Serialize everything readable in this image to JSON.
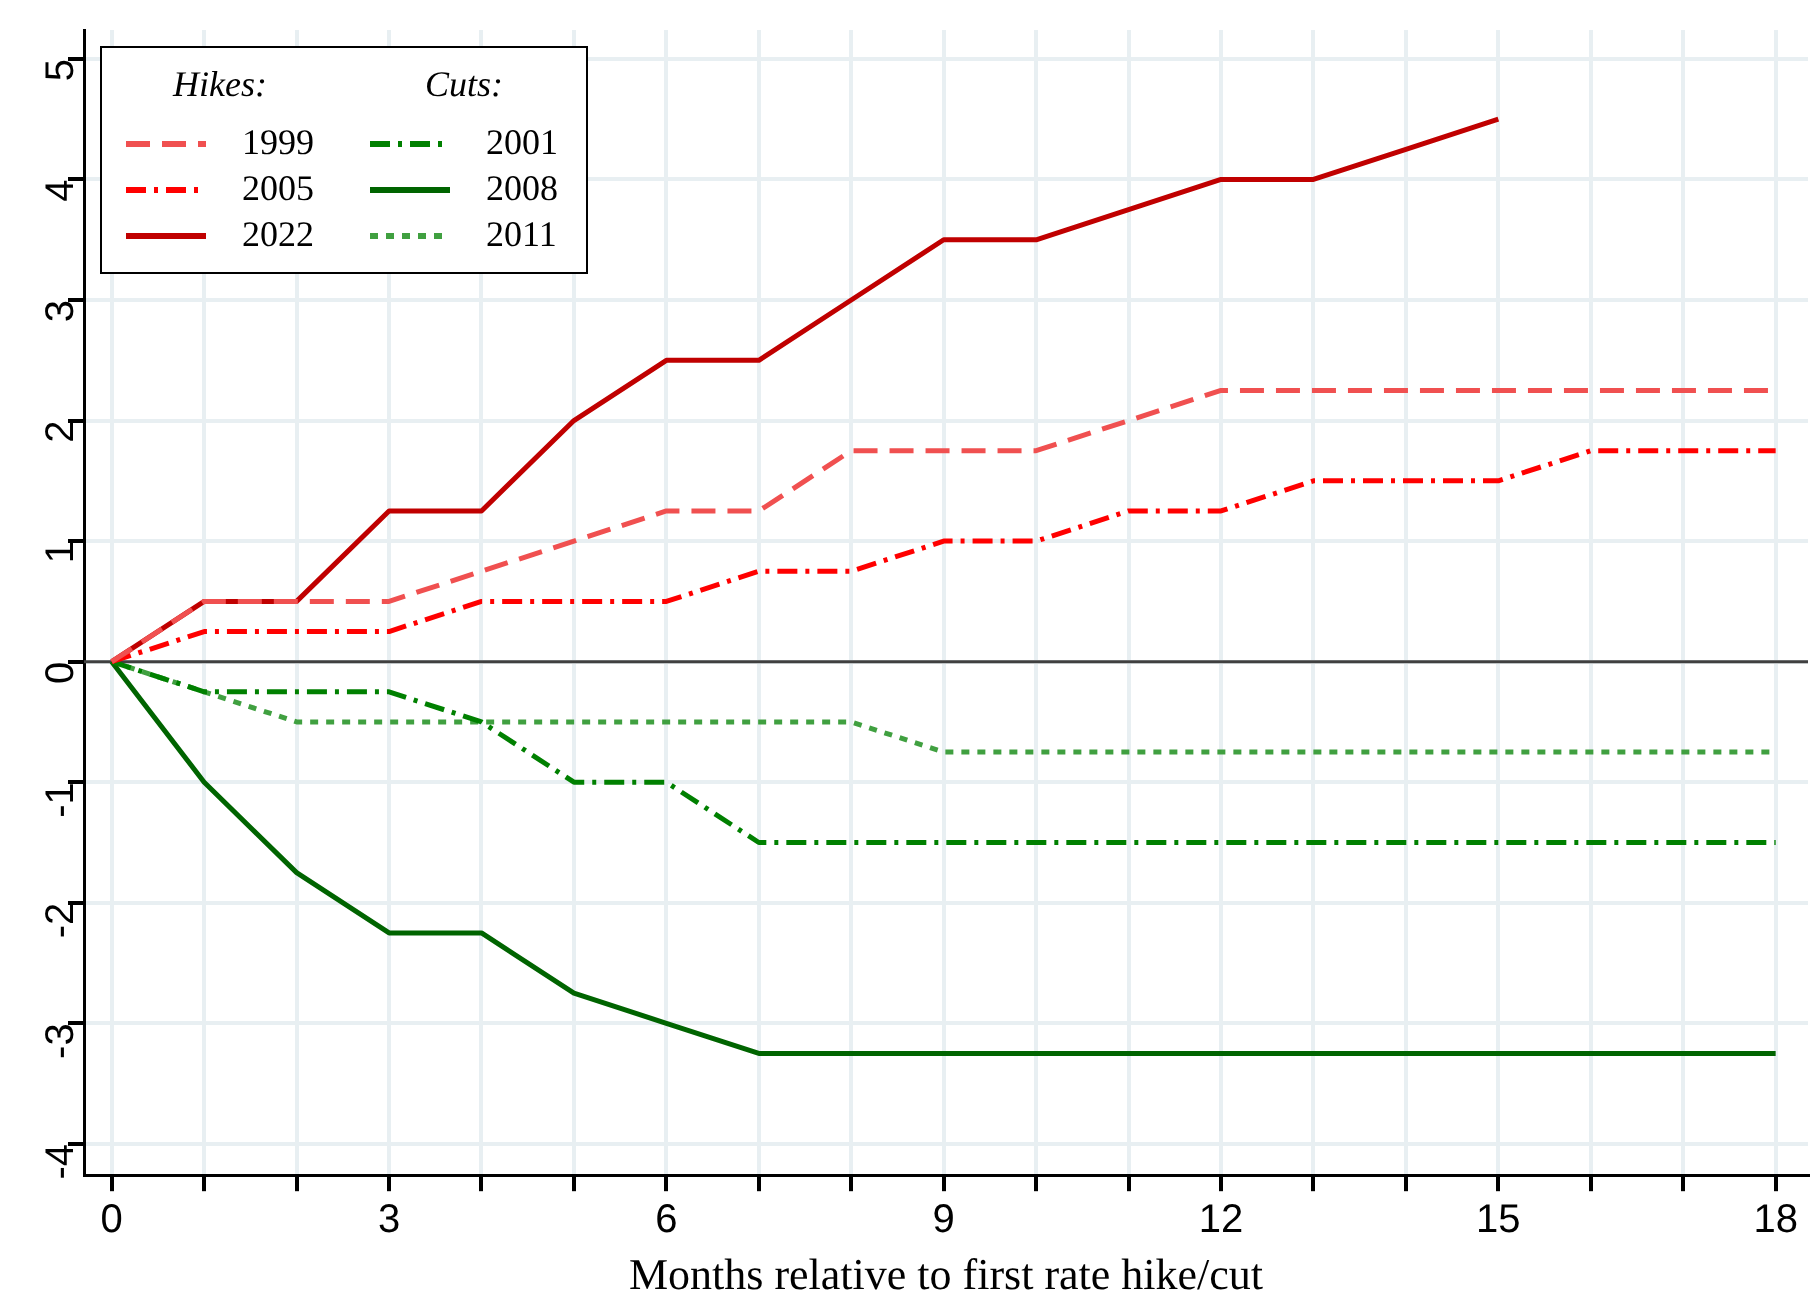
{
  "chart_data": {
    "type": "line",
    "xlabel": "Months relative to first rate hike/cut",
    "x": [
      0,
      1,
      2,
      3,
      4,
      5,
      6,
      7,
      8,
      9,
      10,
      11,
      12,
      13,
      14,
      15,
      16,
      17,
      18
    ],
    "xlim": [
      -0.3,
      18.35
    ],
    "xticks": [
      0,
      {
        "value": 1,
        "label": null
      },
      {
        "value": 2,
        "label": null
      },
      3,
      {
        "value": 4,
        "label": null
      },
      {
        "value": 5,
        "label": null
      },
      6,
      {
        "value": 7,
        "label": null
      },
      {
        "value": 8,
        "label": null
      },
      9,
      {
        "value": 10,
        "label": null
      },
      {
        "value": 11,
        "label": null
      },
      12,
      {
        "value": 13,
        "label": null
      },
      {
        "value": 14,
        "label": null
      },
      15,
      {
        "value": 16,
        "label": null
      },
      {
        "value": 17,
        "label": null
      },
      18
    ],
    "ylim": [
      -4.26,
      5.24
    ],
    "yticks": [
      -4,
      -3,
      -2,
      -1,
      0,
      1,
      2,
      3,
      4,
      5
    ],
    "grid": true,
    "legend": "top left",
    "marker": "none",
    "annotations": [
      "Hikes:",
      "Cuts:"
    ],
    "ref_lines": [
      {
        "axis": "y",
        "value": 0,
        "color": "#404040"
      }
    ],
    "series": [
      {
        "name": "1999",
        "color": "#f05050",
        "line_style": "dashed",
        "values": [
          0,
          0.5,
          0.5,
          0.5,
          0.75,
          1,
          1.25,
          1.25,
          1.75,
          1.75,
          1.75,
          2,
          2.25,
          2.25,
          2.25,
          2.25,
          2.25,
          2.25,
          2.25
        ]
      },
      {
        "name": "2005",
        "color": "#ff0000",
        "line_style": "dashdot",
        "values": [
          0,
          0.25,
          0.25,
          0.25,
          0.5,
          0.5,
          0.5,
          0.75,
          0.75,
          1,
          1,
          1.25,
          1.25,
          1.5,
          1.5,
          1.5,
          1.75,
          1.75,
          1.75
        ]
      },
      {
        "name": "2022",
        "color": "#c00000",
        "line_style": "solid",
        "values": [
          0,
          0.5,
          0.5,
          1.25,
          1.25,
          2,
          2.5,
          2.5,
          3,
          3.5,
          3.5,
          3.75,
          4,
          4,
          4.25,
          4.5,
          null,
          null,
          null
        ]
      },
      {
        "name": "2001",
        "color": "#008000",
        "line_style": "dashdot",
        "values": [
          0,
          -0.25,
          -0.25,
          -0.25,
          -0.5,
          -1,
          -1,
          -1.5,
          -1.5,
          -1.5,
          -1.5,
          -1.5,
          -1.5,
          -1.5,
          -1.5,
          -1.5,
          -1.5,
          -1.5,
          -1.5
        ]
      },
      {
        "name": "2008",
        "color": "#006400",
        "line_style": "solid",
        "values": [
          0,
          -1,
          -1.75,
          -2.25,
          -2.25,
          -2.75,
          -3,
          -3.25,
          -3.25,
          -3.25,
          -3.25,
          -3.25,
          -3.25,
          -3.25,
          -3.25,
          -3.25,
          -3.25,
          -3.25,
          -3.25
        ]
      },
      {
        "name": "2011",
        "color": "#40a040",
        "line_style": "dotted",
        "values": [
          0,
          -0.25,
          -0.5,
          -0.5,
          -0.5,
          -0.5,
          -0.5,
          -0.5,
          -0.5,
          -0.75,
          -0.75,
          -0.75,
          -0.75,
          -0.75,
          -0.75,
          -0.75,
          -0.75,
          -0.75,
          -0.75
        ]
      }
    ]
  }
}
